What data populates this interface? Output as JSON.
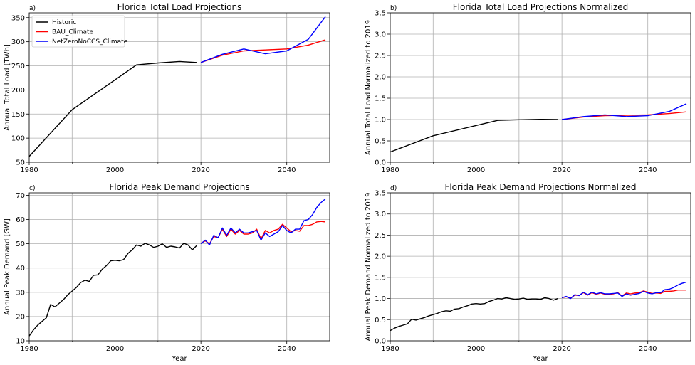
{
  "chart_data": [
    {
      "id": "a",
      "type": "line",
      "panel_label": "a)",
      "title": "Florida Total Load Projections",
      "xlabel": "",
      "ylabel": "Annual Total Load [TWh]",
      "xlim": [
        1980,
        2050
      ],
      "ylim": [
        50,
        360
      ],
      "xticks": [
        1980,
        2000,
        2020,
        2040
      ],
      "yticks": [
        50,
        100,
        150,
        200,
        250,
        300,
        350
      ],
      "grid": true,
      "legend": "top-left",
      "series": [
        {
          "name": "Historic",
          "color": "#000000",
          "x": [
            1980,
            1990,
            2005,
            2010,
            2015,
            2019
          ],
          "y": [
            62,
            159,
            252,
            256,
            259,
            257
          ]
        },
        {
          "name": "BAU_Climate",
          "color": "#ff0000",
          "x": [
            2020,
            2025,
            2030,
            2035,
            2040,
            2045,
            2049
          ],
          "y": [
            257,
            272,
            281,
            283,
            285,
            293,
            304
          ]
        },
        {
          "name": "NetZeroNoCCS_Climate",
          "color": "#0000ff",
          "x": [
            2020,
            2025,
            2030,
            2035,
            2040,
            2045,
            2049
          ],
          "y": [
            257,
            274,
            285,
            275,
            281,
            305,
            352
          ]
        }
      ]
    },
    {
      "id": "b",
      "type": "line",
      "panel_label": "b)",
      "title": "Florida Total Load Projections Normalized",
      "xlabel": "",
      "ylabel": "Annual Total Load Normalized to 2019",
      "xlim": [
        1980,
        2050
      ],
      "ylim": [
        0,
        3.5
      ],
      "xticks": [
        1980,
        2000,
        2020,
        2040
      ],
      "yticks": [
        0.0,
        0.5,
        1.0,
        1.5,
        2.0,
        2.5,
        3.0,
        3.5
      ],
      "grid": true,
      "legend": "none",
      "series": [
        {
          "name": "Historic",
          "color": "#000000",
          "x": [
            1980,
            1990,
            2005,
            2010,
            2015,
            2019
          ],
          "y": [
            0.24,
            0.62,
            0.98,
            0.995,
            1.005,
            1.0
          ]
        },
        {
          "name": "BAU_Climate",
          "color": "#ff0000",
          "x": [
            2020,
            2025,
            2030,
            2035,
            2040,
            2045,
            2049
          ],
          "y": [
            1.0,
            1.06,
            1.09,
            1.1,
            1.11,
            1.14,
            1.18
          ]
        },
        {
          "name": "NetZeroNoCCS_Climate",
          "color": "#0000ff",
          "x": [
            2020,
            2025,
            2030,
            2035,
            2040,
            2045,
            2049
          ],
          "y": [
            1.0,
            1.07,
            1.11,
            1.07,
            1.09,
            1.19,
            1.37
          ]
        }
      ]
    },
    {
      "id": "c",
      "type": "line",
      "panel_label": "c)",
      "title": "Florida Peak Demand Projections",
      "xlabel": "Year",
      "ylabel": "Annual Peak Demand [GW]",
      "xlim": [
        1980,
        2050
      ],
      "ylim": [
        10,
        71
      ],
      "xticks": [
        1980,
        2000,
        2020,
        2040
      ],
      "yticks": [
        10,
        20,
        30,
        40,
        50,
        60,
        70
      ],
      "grid": true,
      "legend": "none",
      "series": [
        {
          "name": "Historic",
          "color": "#000000",
          "x": [
            1980,
            1981,
            1982,
            1983,
            1984,
            1985,
            1986,
            1987,
            1988,
            1989,
            1990,
            1991,
            1992,
            1993,
            1994,
            1995,
            1996,
            1997,
            1998,
            1999,
            2000,
            2001,
            2002,
            2003,
            2004,
            2005,
            2006,
            2007,
            2008,
            2009,
            2010,
            2011,
            2012,
            2013,
            2014,
            2015,
            2016,
            2017,
            2018,
            2019
          ],
          "y": [
            12,
            14.5,
            16.5,
            18,
            19.5,
            25,
            24,
            25.5,
            27,
            29,
            30.5,
            32,
            34,
            35,
            34.5,
            37,
            37.2,
            39.5,
            41,
            43,
            43.2,
            43,
            43.5,
            46,
            47.5,
            49.5,
            49,
            50.2,
            49.5,
            48.5,
            49,
            50,
            48.5,
            49,
            48.7,
            48.2,
            50.2,
            49.5,
            47.5,
            49.2
          ]
        },
        {
          "name": "BAU_Climate",
          "color": "#ff0000",
          "x": [
            2020,
            2021,
            2022,
            2023,
            2024,
            2025,
            2026,
            2027,
            2028,
            2029,
            2030,
            2031,
            2032,
            2033,
            2034,
            2035,
            2036,
            2037,
            2038,
            2039,
            2040,
            2041,
            2042,
            2043,
            2044,
            2045,
            2046,
            2047,
            2048,
            2049
          ],
          "y": [
            50.2,
            51.2,
            50,
            53,
            52.5,
            56,
            53,
            56,
            54,
            55.5,
            54,
            54,
            54.5,
            56,
            52,
            55.5,
            54.5,
            55.5,
            56,
            58,
            56.5,
            55,
            55.5,
            55.2,
            57.5,
            57.5,
            58,
            59,
            59.2,
            59
          ]
        },
        {
          "name": "NetZeroNoCCS_Climate",
          "color": "#0000ff",
          "x": [
            2020,
            2021,
            2022,
            2023,
            2024,
            2025,
            2026,
            2027,
            2028,
            2029,
            2030,
            2031,
            2032,
            2033,
            2034,
            2035,
            2036,
            2037,
            2038,
            2039,
            2040,
            2041,
            2042,
            2043,
            2044,
            2045,
            2046,
            2047,
            2048,
            2049
          ],
          "y": [
            50,
            51.5,
            49.5,
            53.5,
            52.5,
            56.5,
            53.5,
            56.5,
            54.5,
            56,
            54.5,
            54.5,
            55,
            55.5,
            51.5,
            54.5,
            53,
            54,
            55,
            57.5,
            55.5,
            54.5,
            56,
            56,
            59.5,
            60,
            62,
            65,
            67,
            68.5
          ]
        }
      ]
    },
    {
      "id": "d",
      "type": "line",
      "panel_label": "d)",
      "title": "Florida Peak Demand Projections Normalized",
      "xlabel": "Year",
      "ylabel": "Annual Peak Demand Normalized to 2019",
      "xlim": [
        1980,
        2050
      ],
      "ylim": [
        0,
        3.5
      ],
      "xticks": [
        1980,
        2000,
        2020,
        2040
      ],
      "yticks": [
        0.0,
        0.5,
        1.0,
        1.5,
        2.0,
        2.5,
        3.0,
        3.5
      ],
      "grid": true,
      "legend": "none",
      "series": [
        {
          "name": "Historic",
          "color": "#000000",
          "x": [
            1980,
            1981,
            1982,
            1983,
            1984,
            1985,
            1986,
            1987,
            1988,
            1989,
            1990,
            1991,
            1992,
            1993,
            1994,
            1995,
            1996,
            1997,
            1998,
            1999,
            2000,
            2001,
            2002,
            2003,
            2004,
            2005,
            2006,
            2007,
            2008,
            2009,
            2010,
            2011,
            2012,
            2013,
            2014,
            2015,
            2016,
            2017,
            2018,
            2019
          ],
          "y": [
            0.24,
            0.3,
            0.34,
            0.37,
            0.4,
            0.51,
            0.49,
            0.52,
            0.55,
            0.59,
            0.62,
            0.65,
            0.69,
            0.71,
            0.7,
            0.75,
            0.76,
            0.8,
            0.83,
            0.87,
            0.88,
            0.87,
            0.88,
            0.93,
            0.96,
            1.0,
            0.99,
            1.02,
            1.0,
            0.98,
            0.99,
            1.01,
            0.98,
            0.99,
            0.99,
            0.98,
            1.02,
            1.0,
            0.96,
            1.0
          ]
        },
        {
          "name": "BAU_Climate",
          "color": "#ff0000",
          "x": [
            2020,
            2021,
            2022,
            2023,
            2024,
            2025,
            2026,
            2027,
            2028,
            2029,
            2030,
            2031,
            2032,
            2033,
            2034,
            2035,
            2036,
            2037,
            2038,
            2039,
            2040,
            2041,
            2042,
            2043,
            2044,
            2045,
            2046,
            2047,
            2048,
            2049
          ],
          "y": [
            1.02,
            1.04,
            1.01,
            1.08,
            1.07,
            1.14,
            1.08,
            1.14,
            1.1,
            1.13,
            1.1,
            1.1,
            1.11,
            1.14,
            1.06,
            1.13,
            1.11,
            1.13,
            1.14,
            1.18,
            1.15,
            1.12,
            1.13,
            1.12,
            1.17,
            1.17,
            1.18,
            1.2,
            1.2,
            1.2
          ]
        },
        {
          "name": "NetZeroNoCCS_Climate",
          "color": "#0000ff",
          "x": [
            2020,
            2021,
            2022,
            2023,
            2024,
            2025,
            2026,
            2027,
            2028,
            2029,
            2030,
            2031,
            2032,
            2033,
            2034,
            2035,
            2036,
            2037,
            2038,
            2039,
            2040,
            2041,
            2042,
            2043,
            2044,
            2045,
            2046,
            2047,
            2048,
            2049
          ],
          "y": [
            1.02,
            1.05,
            1.0,
            1.09,
            1.07,
            1.15,
            1.09,
            1.15,
            1.11,
            1.14,
            1.11,
            1.11,
            1.12,
            1.13,
            1.05,
            1.11,
            1.08,
            1.1,
            1.12,
            1.17,
            1.13,
            1.11,
            1.14,
            1.14,
            1.21,
            1.22,
            1.26,
            1.32,
            1.36,
            1.39
          ]
        }
      ]
    }
  ]
}
